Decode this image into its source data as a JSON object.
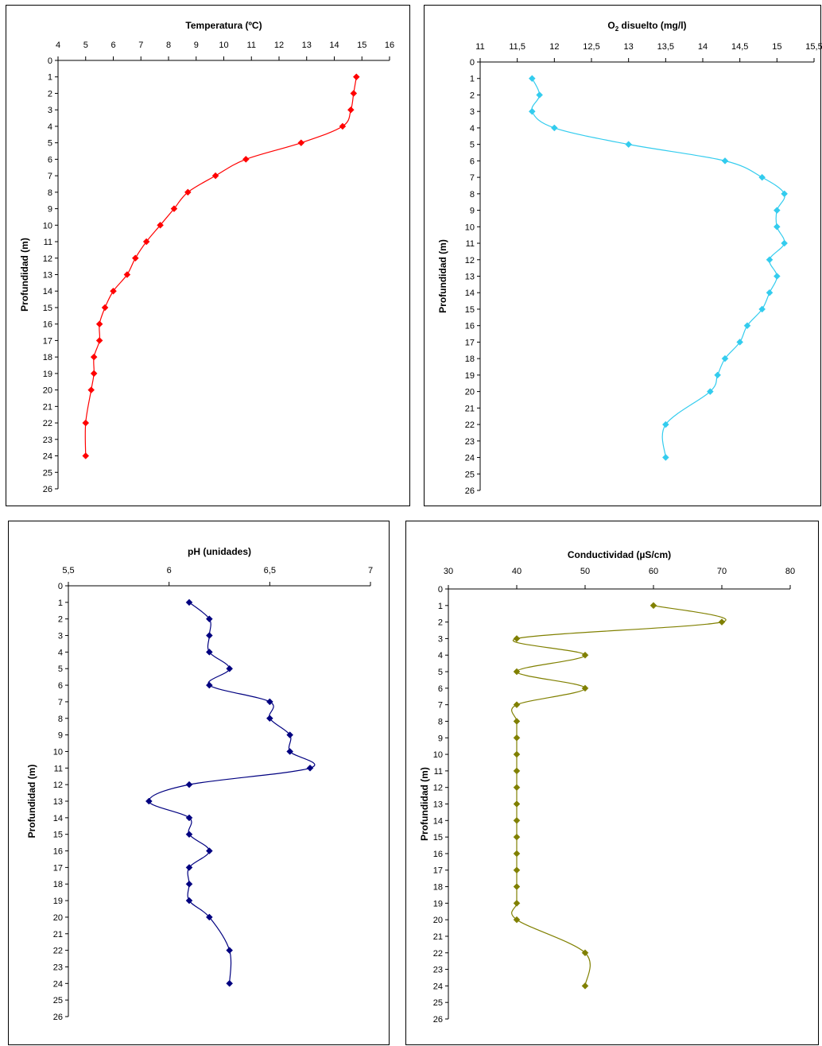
{
  "chart_data": [
    {
      "type": "line",
      "title": "Temperatura (ºC)",
      "title_parts": [
        "Temperatura (ºC)",
        "",
        ""
      ],
      "ylabel": "Profundidad (m)",
      "x_axis_position": "top",
      "y_axis": "inverted",
      "xlim": [
        4,
        16
      ],
      "x_ticks": [
        "4",
        "5",
        "6",
        "7",
        "8",
        "9",
        "10",
        "11",
        "12",
        "13",
        "14",
        "15",
        "16"
      ],
      "ylim": [
        0,
        26
      ],
      "y_ticks": [
        "0",
        "1",
        "2",
        "3",
        "4",
        "5",
        "6",
        "7",
        "8",
        "9",
        "10",
        "11",
        "12",
        "13",
        "14",
        "15",
        "16",
        "17",
        "18",
        "19",
        "20",
        "21",
        "22",
        "23",
        "24",
        "25",
        "26"
      ],
      "color": "#ff0000",
      "marker": "diamond",
      "grid": false,
      "points": [
        {
          "x": 14.8,
          "y": 1
        },
        {
          "x": 14.7,
          "y": 2
        },
        {
          "x": 14.6,
          "y": 3
        },
        {
          "x": 14.3,
          "y": 4
        },
        {
          "x": 12.8,
          "y": 5
        },
        {
          "x": 10.8,
          "y": 6
        },
        {
          "x": 9.7,
          "y": 7
        },
        {
          "x": 8.7,
          "y": 8
        },
        {
          "x": 8.2,
          "y": 9
        },
        {
          "x": 7.7,
          "y": 10
        },
        {
          "x": 7.2,
          "y": 11
        },
        {
          "x": 6.8,
          "y": 12
        },
        {
          "x": 6.5,
          "y": 13
        },
        {
          "x": 6.0,
          "y": 14
        },
        {
          "x": 5.7,
          "y": 15
        },
        {
          "x": 5.5,
          "y": 16
        },
        {
          "x": 5.5,
          "y": 17
        },
        {
          "x": 5.3,
          "y": 18
        },
        {
          "x": 5.3,
          "y": 19
        },
        {
          "x": 5.2,
          "y": 20
        },
        {
          "x": 5.0,
          "y": 22
        },
        {
          "x": 5.0,
          "y": 24
        }
      ]
    },
    {
      "type": "line",
      "title": "O2 disuelto (mg/l)",
      "title_parts": [
        "O",
        "2",
        " disuelto (mg/l)"
      ],
      "ylabel": "Profundidad (m)",
      "x_axis_position": "top",
      "y_axis": "inverted",
      "xlim": [
        11,
        15.5
      ],
      "x_ticks": [
        "11",
        "11,5",
        "12",
        "12,5",
        "13",
        "13,5",
        "14",
        "14,5",
        "15",
        "15,5"
      ],
      "ylim": [
        0,
        26
      ],
      "y_ticks": [
        "0",
        "1",
        "2",
        "3",
        "4",
        "5",
        "6",
        "7",
        "8",
        "9",
        "10",
        "11",
        "12",
        "13",
        "14",
        "15",
        "16",
        "17",
        "18",
        "19",
        "20",
        "21",
        "22",
        "23",
        "24",
        "25",
        "26"
      ],
      "color": "#33ccee",
      "marker": "diamond",
      "grid": false,
      "points": [
        {
          "x": 11.7,
          "y": 1
        },
        {
          "x": 11.8,
          "y": 2
        },
        {
          "x": 11.7,
          "y": 3
        },
        {
          "x": 12.0,
          "y": 4
        },
        {
          "x": 13.0,
          "y": 5
        },
        {
          "x": 14.3,
          "y": 6
        },
        {
          "x": 14.8,
          "y": 7
        },
        {
          "x": 15.1,
          "y": 8
        },
        {
          "x": 15.0,
          "y": 9
        },
        {
          "x": 15.0,
          "y": 10
        },
        {
          "x": 15.1,
          "y": 11
        },
        {
          "x": 14.9,
          "y": 12
        },
        {
          "x": 15.0,
          "y": 13
        },
        {
          "x": 14.9,
          "y": 14
        },
        {
          "x": 14.8,
          "y": 15
        },
        {
          "x": 14.6,
          "y": 16
        },
        {
          "x": 14.5,
          "y": 17
        },
        {
          "x": 14.3,
          "y": 18
        },
        {
          "x": 14.2,
          "y": 19
        },
        {
          "x": 14.1,
          "y": 20
        },
        {
          "x": 13.5,
          "y": 22
        },
        {
          "x": 13.5,
          "y": 24
        }
      ]
    },
    {
      "type": "line",
      "title": "pH (unidades)",
      "title_parts": [
        "pH (unidades)",
        "",
        ""
      ],
      "ylabel": "Profundidad (m)",
      "x_axis_position": "top",
      "y_axis": "inverted",
      "xlim": [
        5.5,
        7
      ],
      "x_ticks": [
        "5,5",
        "6",
        "6,5",
        "7"
      ],
      "ylim": [
        0,
        26
      ],
      "y_ticks": [
        "0",
        "1",
        "2",
        "3",
        "4",
        "5",
        "6",
        "7",
        "8",
        "9",
        "10",
        "11",
        "12",
        "13",
        "14",
        "15",
        "16",
        "17",
        "18",
        "19",
        "20",
        "21",
        "22",
        "23",
        "24",
        "25",
        "26"
      ],
      "color": "#000080",
      "marker": "diamond",
      "grid": false,
      "points": [
        {
          "x": 6.1,
          "y": 1
        },
        {
          "x": 6.2,
          "y": 2
        },
        {
          "x": 6.2,
          "y": 3
        },
        {
          "x": 6.2,
          "y": 4
        },
        {
          "x": 6.3,
          "y": 5
        },
        {
          "x": 6.2,
          "y": 6
        },
        {
          "x": 6.5,
          "y": 7
        },
        {
          "x": 6.5,
          "y": 8
        },
        {
          "x": 6.6,
          "y": 9
        },
        {
          "x": 6.6,
          "y": 10
        },
        {
          "x": 6.7,
          "y": 11
        },
        {
          "x": 6.1,
          "y": 12
        },
        {
          "x": 5.9,
          "y": 13
        },
        {
          "x": 6.1,
          "y": 14
        },
        {
          "x": 6.1,
          "y": 15
        },
        {
          "x": 6.2,
          "y": 16
        },
        {
          "x": 6.1,
          "y": 17
        },
        {
          "x": 6.1,
          "y": 18
        },
        {
          "x": 6.1,
          "y": 19
        },
        {
          "x": 6.2,
          "y": 20
        },
        {
          "x": 6.3,
          "y": 22
        },
        {
          "x": 6.3,
          "y": 24
        }
      ]
    },
    {
      "type": "line",
      "title": "Conductividad (µS/cm)",
      "title_parts": [
        "Conductividad (µS/cm)",
        "",
        ""
      ],
      "ylabel": "Profundidad (m)",
      "x_axis_position": "top",
      "y_axis": "inverted",
      "xlim": [
        30,
        80
      ],
      "x_ticks": [
        "30",
        "40",
        "50",
        "60",
        "70",
        "80"
      ],
      "ylim": [
        0,
        26
      ],
      "y_ticks": [
        "0",
        "1",
        "2",
        "3",
        "4",
        "5",
        "6",
        "7",
        "8",
        "9",
        "10",
        "11",
        "12",
        "13",
        "14",
        "15",
        "16",
        "17",
        "18",
        "19",
        "20",
        "21",
        "22",
        "23",
        "24",
        "25",
        "26"
      ],
      "color": "#808000",
      "marker": "diamond",
      "grid": false,
      "points": [
        {
          "x": 60,
          "y": 1
        },
        {
          "x": 70,
          "y": 2
        },
        {
          "x": 40,
          "y": 3
        },
        {
          "x": 50,
          "y": 4
        },
        {
          "x": 40,
          "y": 5
        },
        {
          "x": 50,
          "y": 6
        },
        {
          "x": 40,
          "y": 7
        },
        {
          "x": 40,
          "y": 8
        },
        {
          "x": 40,
          "y": 9
        },
        {
          "x": 40,
          "y": 10
        },
        {
          "x": 40,
          "y": 11
        },
        {
          "x": 40,
          "y": 12
        },
        {
          "x": 40,
          "y": 13
        },
        {
          "x": 40,
          "y": 14
        },
        {
          "x": 40,
          "y": 15
        },
        {
          "x": 40,
          "y": 16
        },
        {
          "x": 40,
          "y": 17
        },
        {
          "x": 40,
          "y": 18
        },
        {
          "x": 40,
          "y": 19
        },
        {
          "x": 40,
          "y": 20
        },
        {
          "x": 50,
          "y": 22
        },
        {
          "x": 50,
          "y": 24
        }
      ]
    }
  ]
}
